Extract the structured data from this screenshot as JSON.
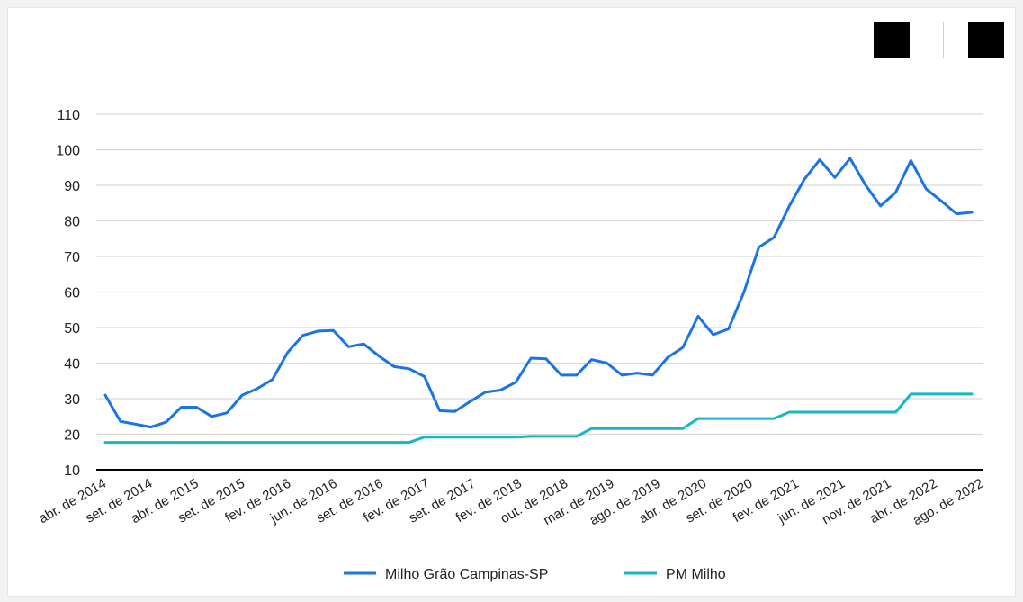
{
  "toolbar": {
    "left_icon": "black-square-icon",
    "right_icon": "black-square-icon"
  },
  "chart_data": {
    "type": "line",
    "title": "",
    "xlabel": "",
    "ylabel": "",
    "ylim": [
      10,
      110
    ],
    "yticks": [
      10,
      20,
      30,
      40,
      50,
      60,
      70,
      80,
      90,
      100,
      110
    ],
    "grid": true,
    "legend_position": "bottom",
    "x_tick_labels": [
      {
        "index": 0,
        "label": "abr. de 2014"
      },
      {
        "index": 5,
        "label": "set. de 2014"
      },
      {
        "index": 12,
        "label": "abr. de 2015"
      },
      {
        "index": 17,
        "label": "set. de 2015"
      },
      {
        "index": 22,
        "label": "fev. de 2016"
      },
      {
        "index": 26,
        "label": "jun. de 2016"
      },
      {
        "index": 29,
        "label": "set. de 2016"
      },
      {
        "index": 34,
        "label": "fev. de 2017"
      },
      {
        "index": 41,
        "label": "set. de 2017"
      },
      {
        "index": 46,
        "label": "fev. de 2018"
      },
      {
        "index": 54,
        "label": "out. de 2018"
      },
      {
        "index": 59,
        "label": "mar. de 2019"
      },
      {
        "index": 64,
        "label": "ago. de 2019"
      },
      {
        "index": 72,
        "label": "abr. de 2020"
      },
      {
        "index": 77,
        "label": "set. de 2020"
      },
      {
        "index": 82,
        "label": "fev. de 2021"
      },
      {
        "index": 86,
        "label": "jun. de 2021"
      },
      {
        "index": 91,
        "label": "nov. de 2021"
      },
      {
        "index": 96,
        "label": "abr. de 2022"
      },
      {
        "index": 100,
        "label": "ago. de 2022"
      }
    ],
    "x_index_range": [
      0,
      100
    ],
    "series": [
      {
        "name": "Milho Grão Campinas-SP",
        "color": "#1a73e8",
        "points": [
          [
            0,
            31.0
          ],
          [
            2,
            23.6
          ],
          [
            4,
            22.8
          ],
          [
            6,
            22.0
          ],
          [
            8,
            23.4
          ],
          [
            10,
            27.6
          ],
          [
            12,
            27.6
          ],
          [
            14,
            25.0
          ],
          [
            16,
            26.0
          ],
          [
            18,
            31.0
          ],
          [
            20,
            32.8
          ],
          [
            22,
            35.4
          ],
          [
            24,
            43.0
          ],
          [
            26,
            47.8
          ],
          [
            28,
            49.0
          ],
          [
            30,
            49.2
          ],
          [
            32,
            44.6
          ],
          [
            34,
            45.4
          ],
          [
            36,
            42.0
          ],
          [
            38,
            39.0
          ],
          [
            40,
            38.4
          ],
          [
            42,
            36.2
          ],
          [
            44,
            26.6
          ],
          [
            46,
            26.4
          ],
          [
            48,
            29.2
          ],
          [
            50,
            31.8
          ],
          [
            52,
            32.4
          ],
          [
            54,
            34.6
          ],
          [
            56,
            41.4
          ],
          [
            58,
            41.2
          ],
          [
            60,
            36.6
          ],
          [
            62,
            36.6
          ],
          [
            64,
            41.0
          ],
          [
            66,
            40.0
          ],
          [
            68,
            36.6
          ],
          [
            70,
            37.2
          ],
          [
            72,
            36.6
          ],
          [
            74,
            41.6
          ],
          [
            76,
            44.4
          ],
          [
            78,
            53.2
          ],
          [
            80,
            48.0
          ],
          [
            82,
            49.6
          ],
          [
            84,
            59.8
          ],
          [
            86,
            72.6
          ],
          [
            88,
            75.4
          ],
          [
            90,
            84.2
          ],
          [
            92,
            91.8
          ],
          [
            94,
            97.2
          ],
          [
            96,
            92.2
          ],
          [
            98,
            97.6
          ],
          [
            100,
            90.2
          ],
          [
            102,
            84.2
          ],
          [
            104,
            88.0
          ],
          [
            106,
            97.0
          ],
          [
            108,
            89.0
          ],
          [
            110,
            85.6
          ],
          [
            112,
            82.0
          ],
          [
            114,
            82.4
          ]
        ]
      },
      {
        "name": "PM Milho",
        "color": "#17b8c4",
        "points": [
          [
            0,
            17.7
          ],
          [
            40,
            17.7
          ],
          [
            42,
            19.2
          ],
          [
            54,
            19.2
          ],
          [
            56,
            19.4
          ],
          [
            62,
            19.4
          ],
          [
            64,
            21.6
          ],
          [
            76,
            21.6
          ],
          [
            78,
            24.4
          ],
          [
            88,
            24.4
          ],
          [
            90,
            26.2
          ],
          [
            104,
            26.2
          ],
          [
            106,
            31.3
          ],
          [
            114,
            31.3
          ]
        ]
      }
    ]
  }
}
